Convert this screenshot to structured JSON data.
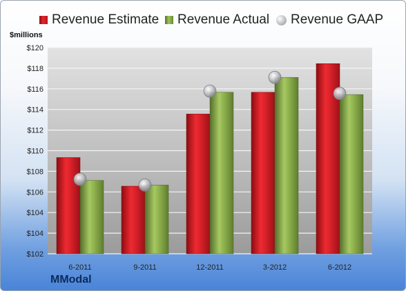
{
  "chart_data": {
    "type": "bar",
    "ylabel": "$millions",
    "categories": [
      "6-2011",
      "9-2011",
      "12-2011",
      "3-2012",
      "6-2012"
    ],
    "series": [
      {
        "name": "Revenue Estimate",
        "type": "bar",
        "color": "#d6202a",
        "values": [
          110.4,
          107.9,
          114.2,
          116.1,
          118.6
        ]
      },
      {
        "name": "Revenue Actual",
        "type": "bar",
        "color": "#8bb04a",
        "values": [
          108.4,
          108.0,
          116.1,
          117.4,
          115.9
        ]
      },
      {
        "name": "Revenue GAAP",
        "type": "marker",
        "color": "#c0c2c6",
        "values": [
          108.5,
          108.0,
          116.2,
          117.4,
          116.0
        ]
      }
    ],
    "ylim": [
      102,
      120
    ],
    "yticks": [
      "$102",
      "$104",
      "$104",
      "$106",
      "$108",
      "$110",
      "$112",
      "$114",
      "$116",
      "$118",
      "$120"
    ],
    "grid": true,
    "legend": "top"
  },
  "company": "MModal"
}
